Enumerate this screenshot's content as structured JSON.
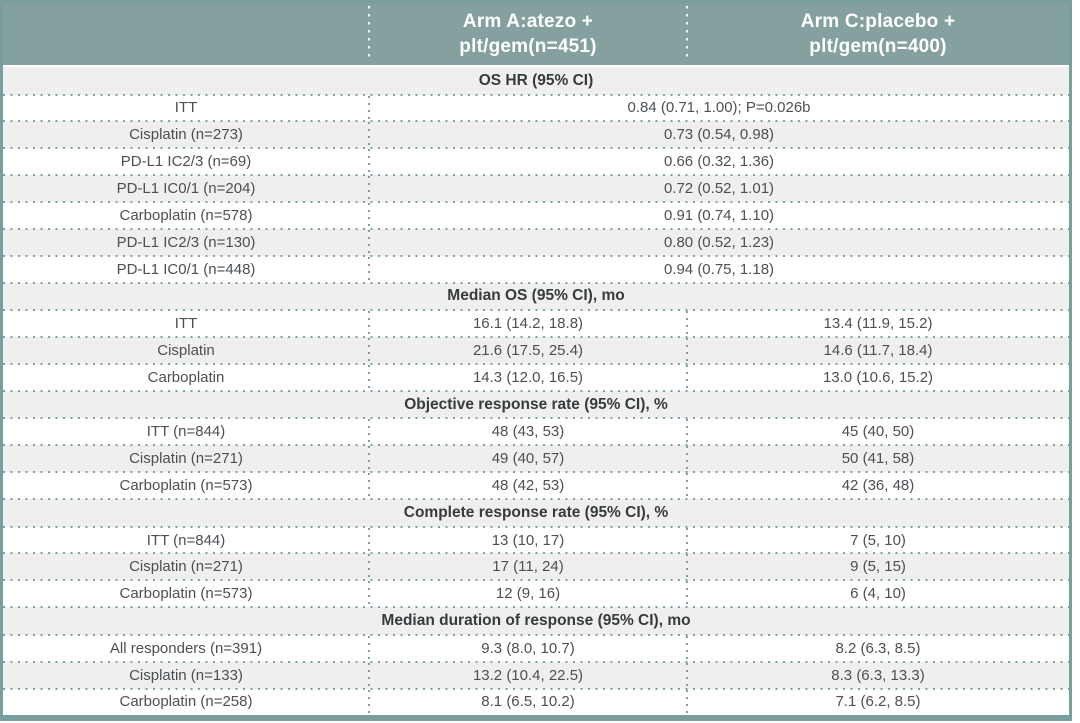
{
  "header": {
    "arm_a": {
      "line1": "Arm A:atezo +",
      "line2": "plt/gem(n=451)"
    },
    "arm_c": {
      "line1": "Arm C:placebo +",
      "line2": "plt/gem(n=400)"
    }
  },
  "colors": {
    "header_bg": "#85a19f",
    "header_text": "#ffffff",
    "outer_border": "#7a9e9c",
    "zebra_gray": "#efefef",
    "dot_separator": "#7fa09e",
    "body_text": "#4b5054"
  },
  "chart_data": {
    "type": "table",
    "columns": [
      "",
      "Arm A:atezo + plt/gem(n=451)",
      "Arm C:placebo + plt/gem(n=400)"
    ],
    "sections": [
      {
        "header": "OS HR (95% CI)",
        "span_both_arms": true,
        "rows": [
          {
            "label": "ITT",
            "values": [
              "0.84 (0.71, 1.00); P=0.026b"
            ]
          },
          {
            "label": "Cisplatin (n=273)",
            "values": [
              "0.73 (0.54, 0.98)"
            ]
          },
          {
            "label": "PD-L1 IC2/3 (n=69)",
            "values": [
              "0.66 (0.32, 1.36)"
            ]
          },
          {
            "label": "PD-L1 IC0/1 (n=204)",
            "values": [
              "0.72 (0.52, 1.01)"
            ]
          },
          {
            "label": "Carboplatin (n=578)",
            "values": [
              "0.91 (0.74, 1.10)"
            ]
          },
          {
            "label": "PD-L1 IC2/3 (n=130)",
            "values": [
              "0.80 (0.52, 1.23)"
            ]
          },
          {
            "label": "PD-L1 IC0/1 (n=448)",
            "values": [
              "0.94 (0.75, 1.18)"
            ]
          }
        ]
      },
      {
        "header": "Median OS (95% CI), mo",
        "span_both_arms": false,
        "rows": [
          {
            "label": "ITT",
            "values": [
              "16.1 (14.2, 18.8)",
              "13.4 (11.9, 15.2)"
            ]
          },
          {
            "label": "Cisplatin",
            "values": [
              "21.6 (17.5, 25.4)",
              "14.6 (11.7, 18.4)"
            ]
          },
          {
            "label": "Carboplatin",
            "values": [
              "14.3 (12.0, 16.5)",
              "13.0 (10.6, 15.2)"
            ]
          }
        ]
      },
      {
        "header": "Objective response rate (95% CI), %",
        "span_both_arms": false,
        "rows": [
          {
            "label": "ITT (n=844)",
            "values": [
              "48 (43, 53)",
              "45 (40, 50)"
            ]
          },
          {
            "label": "Cisplatin (n=271)",
            "values": [
              "49 (40, 57)",
              "50 (41, 58)"
            ]
          },
          {
            "label": "Carboplatin (n=573)",
            "values": [
              "48 (42, 53)",
              "42 (36, 48)"
            ]
          }
        ]
      },
      {
        "header": "Complete response rate (95% CI), %",
        "span_both_arms": false,
        "rows": [
          {
            "label": "ITT (n=844)",
            "values": [
              "13 (10, 17)",
              "7 (5, 10)"
            ]
          },
          {
            "label": "Cisplatin (n=271)",
            "values": [
              "17 (11, 24)",
              "9 (5, 15)"
            ]
          },
          {
            "label": "Carboplatin (n=573)",
            "values": [
              "12 (9, 16)",
              "6 (4, 10)"
            ]
          }
        ]
      },
      {
        "header": "Median duration of response (95% CI), mo",
        "span_both_arms": false,
        "rows": [
          {
            "label": "All responders (n=391)",
            "values": [
              "9.3 (8.0, 10.7)",
              "8.2 (6.3, 8.5)"
            ]
          },
          {
            "label": "Cisplatin (n=133)",
            "values": [
              "13.2 (10.4, 22.5)",
              "8.3 (6.3, 13.3)"
            ]
          },
          {
            "label": "Carboplatin (n=258)",
            "values": [
              "8.1 (6.5, 10.2)",
              "7.1 (6.2, 8.5)"
            ]
          }
        ]
      }
    ]
  }
}
